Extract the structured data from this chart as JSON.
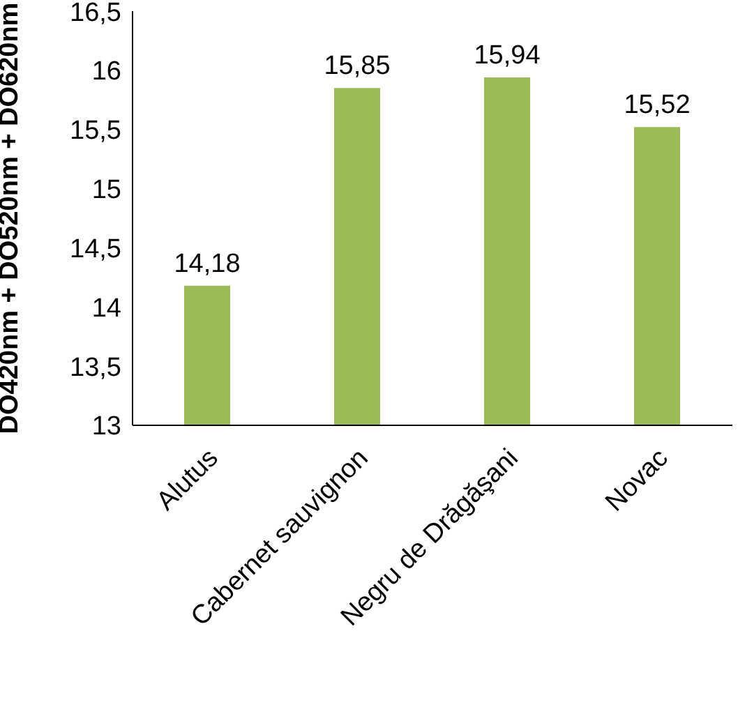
{
  "chart_data": {
    "type": "bar",
    "ylabel": "DO420nm + DO520nm + DO620nm",
    "categories": [
      "Alutus",
      "Cabernet sauvignon",
      "Negru de Drăgăşani",
      "Novac"
    ],
    "values": [
      14.18,
      15.85,
      15.94,
      15.52
    ],
    "value_labels": [
      "14,18",
      "15,85",
      "15,94",
      "15,52"
    ],
    "color": "#9bbb59",
    "ylim": [
      13,
      16.5
    ],
    "yticks": [
      13,
      {
        "value": 13.5,
        "label": "13,5"
      },
      14,
      {
        "value": 14.5,
        "label": "14,5"
      },
      15,
      {
        "value": 15.5,
        "label": "15,5"
      },
      16,
      {
        "value": 16.5,
        "label": "16,5"
      }
    ],
    "grid": false,
    "legend": false
  }
}
